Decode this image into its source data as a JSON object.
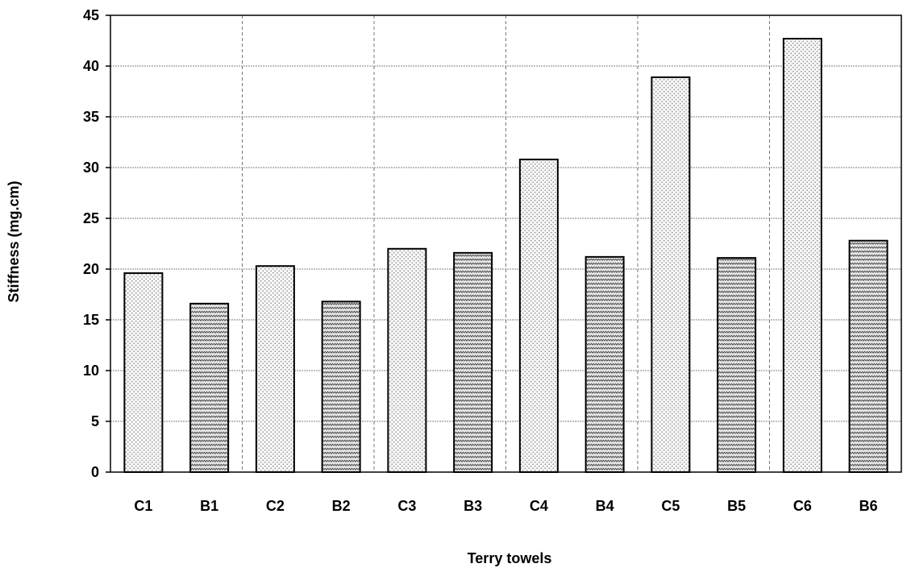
{
  "chart_data": {
    "type": "bar",
    "xlabel": "Terry towels",
    "ylabel": "Stiffness (mg.cm)",
    "categories": [
      "C1",
      "B1",
      "C2",
      "B2",
      "C3",
      "B3",
      "C4",
      "B4",
      "C5",
      "B5",
      "C6",
      "B6"
    ],
    "values": [
      19.6,
      16.6,
      20.3,
      16.8,
      22.0,
      21.6,
      30.8,
      21.2,
      38.9,
      21.1,
      42.7,
      22.8
    ],
    "ylim": [
      0,
      45
    ],
    "yticks": [
      0,
      5,
      10,
      15,
      20,
      25,
      30,
      35,
      40,
      45
    ],
    "grid": {
      "horizontal": true,
      "vertical_dashed_between_pairs": true
    },
    "legend": "none",
    "fill_patterns": {
      "C": "dotted",
      "B": "zigzag"
    },
    "colors": {
      "bar_stroke": "#000000",
      "c_fill_bg": "#f4f4f4",
      "b_fill_bg": "#d9d9d9"
    }
  }
}
